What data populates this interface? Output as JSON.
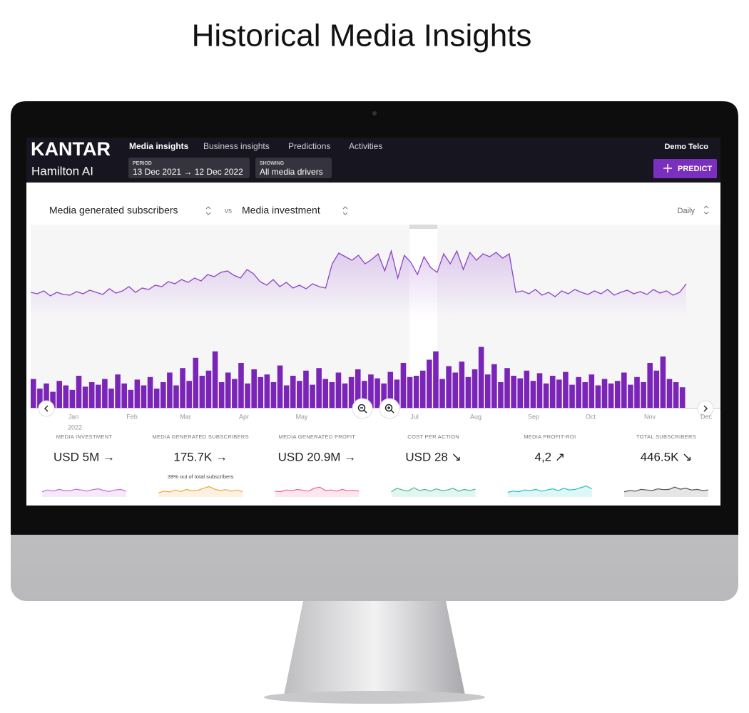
{
  "title": "Historical Media Insights",
  "header": {
    "logo": "KANTAR",
    "product": "Hamilton AI",
    "tabs": [
      "Media insights",
      "Business insights",
      "Predictions",
      "Activities"
    ],
    "period_label": "PERIOD",
    "period": "13 Dec 2021 → 12 Dec 2022",
    "showing_label": "SHOWING",
    "showing": "All media drivers",
    "account": "Demo Telco",
    "button": "PREDICT"
  },
  "controls": {
    "metric": "Media generated subscribers",
    "vs": "vs",
    "comparison": "Media investment",
    "granularity": "Daily"
  },
  "chart": {
    "months": [
      "Jan",
      "Feb",
      "Mar",
      "Apr",
      "May",
      "Jul",
      "Aug",
      "Sep",
      "Oct",
      "Nov",
      "Dec"
    ],
    "year": "2022",
    "line": {
      "color": "#8e44c4",
      "values": [
        30,
        28,
        32,
        25,
        30,
        27,
        26,
        31,
        28,
        33,
        30,
        27,
        35,
        29,
        32,
        38,
        30,
        36,
        34,
        40,
        38,
        45,
        42,
        48,
        44,
        50,
        46,
        55,
        52,
        58,
        60,
        54,
        50,
        62,
        56,
        45,
        40,
        48,
        38,
        44,
        36,
        40,
        35,
        42,
        38,
        36,
        70,
        85,
        80,
        75,
        82,
        70,
        76,
        84,
        60,
        88,
        50,
        82,
        72,
        55,
        80,
        65,
        58,
        84,
        70,
        88,
        62,
        86,
        75,
        84,
        80,
        86,
        78,
        84,
        30,
        32,
        28,
        34,
        26,
        30,
        24,
        32,
        28,
        34,
        30,
        27,
        32,
        28,
        34,
        26,
        30,
        33,
        28,
        31,
        27,
        34,
        29,
        32,
        26,
        30,
        42
      ]
    },
    "bars": {
      "color": "#7a25b8",
      "values": [
        45,
        30,
        38,
        25,
        42,
        35,
        28,
        50,
        33,
        40,
        36,
        45,
        30,
        52,
        38,
        28,
        44,
        35,
        48,
        30,
        40,
        55,
        35,
        62,
        42,
        78,
        50,
        58,
        88,
        40,
        55,
        45,
        70,
        38,
        60,
        48,
        52,
        40,
        66,
        35,
        50,
        42,
        58,
        36,
        62,
        45,
        40,
        55,
        38,
        48,
        60,
        42,
        52,
        46,
        38,
        56,
        44,
        70,
        48,
        50,
        58,
        75,
        88,
        45,
        65,
        55,
        72,
        48,
        60,
        95,
        52,
        68,
        40,
        62,
        50,
        46,
        58,
        42,
        54,
        38,
        50,
        44,
        56,
        36,
        48,
        40,
        52,
        35,
        45,
        38,
        42,
        55,
        36,
        48,
        40,
        70,
        58,
        80,
        45,
        40,
        32
      ]
    }
  },
  "kpis": [
    {
      "label": "MEDIA INVESTMENT",
      "value": "USD 5M →",
      "color": "#c26ad6",
      "spark": [
        40,
        55,
        45,
        60,
        50,
        48,
        62,
        55,
        45,
        58,
        65,
        50,
        42,
        55,
        60,
        45
      ]
    },
    {
      "label": "MEDIA GENERATED SUBSCRIBERS",
      "value": "175.7K →",
      "note": "39% out of total subscribers",
      "color": "#f0a33a",
      "spark": [
        30,
        45,
        38,
        55,
        42,
        60,
        48,
        52,
        70,
        85,
        62,
        50,
        58,
        45,
        55,
        40
      ]
    },
    {
      "label": "MEDIA GENERATED PROFIT",
      "value": "USD 20.9M →",
      "color": "#ef5f8e",
      "spark": [
        45,
        40,
        55,
        48,
        60,
        52,
        45,
        70,
        80,
        50,
        55,
        45,
        60,
        48,
        52,
        45
      ]
    },
    {
      "label": "COST PER ACTION",
      "value": "USD 28 ↘",
      "color": "#3dbf8a",
      "spark": [
        40,
        70,
        55,
        45,
        75,
        50,
        60,
        45,
        65,
        50,
        55,
        70,
        45,
        60,
        50,
        62
      ]
    },
    {
      "label": "MEDIA PROFIT-ROI",
      "value": "4,2 ↗",
      "color": "#1fc2c2",
      "spark": [
        35,
        45,
        40,
        55,
        50,
        60,
        45,
        55,
        65,
        50,
        70,
        55,
        60,
        75,
        90,
        65
      ]
    },
    {
      "label": "TOTAL SUBSCRIBERS",
      "value": "446.5K ↘",
      "color": "#555555",
      "spark": [
        40,
        50,
        45,
        60,
        55,
        50,
        65,
        58,
        60,
        80,
        62,
        70,
        55,
        60,
        50,
        55
      ]
    }
  ]
}
